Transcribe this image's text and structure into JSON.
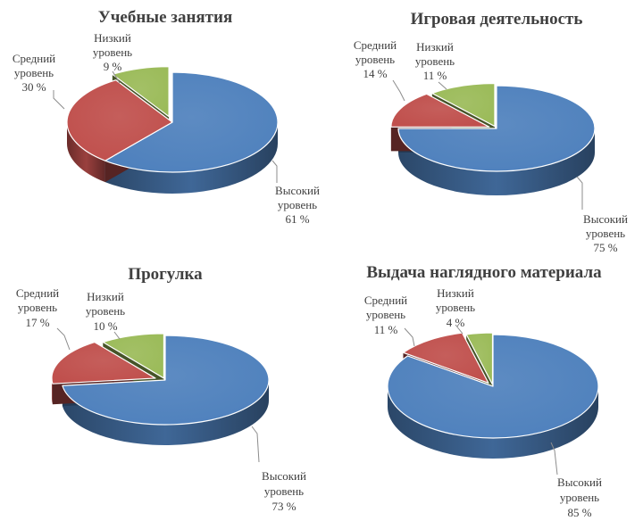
{
  "chart_data": [
    {
      "type": "pie",
      "title": "Учебные занятия",
      "slices": [
        {
          "label_line1": "Высокий",
          "label_line2": "уровень",
          "value_label": "61 %",
          "value": 61
        },
        {
          "label_line1": "Средний",
          "label_line2": "уровень",
          "value_label": "30 %",
          "value": 30
        },
        {
          "label_line1": "Низкий",
          "label_line2": "уровень",
          "value_label": "9 %",
          "value": 9
        }
      ]
    },
    {
      "type": "pie",
      "title": "Игровая деятельность",
      "slices": [
        {
          "label_line1": "Высокий",
          "label_line2": "уровень",
          "value_label": "75 %",
          "value": 75
        },
        {
          "label_line1": "Средний",
          "label_line2": "уровень",
          "value_label": "14 %",
          "value": 14
        },
        {
          "label_line1": "Низкий",
          "label_line2": "уровень",
          "value_label": "11 %",
          "value": 11
        }
      ]
    },
    {
      "type": "pie",
      "title": "Прогулка",
      "slices": [
        {
          "label_line1": "Высокий",
          "label_line2": "уровень",
          "value_label": "73 %",
          "value": 73
        },
        {
          "label_line1": "Средний",
          "label_line2": "уровень",
          "value_label": "17 %",
          "value": 17
        },
        {
          "label_line1": "Низкий",
          "label_line2": "уровень",
          "value_label": "10 %",
          "value": 10
        }
      ]
    },
    {
      "type": "pie",
      "title": "Выдача наглядного материала",
      "slices": [
        {
          "label_line1": "Высокий",
          "label_line2": "уровень",
          "value_label": "85 %",
          "value": 85
        },
        {
          "label_line1": "Средний",
          "label_line2": "уровень",
          "value_label": "11 %",
          "value": 11
        },
        {
          "label_line1": "Низкий",
          "label_line2": "уровень",
          "value_label": "4 %",
          "value": 4
        }
      ]
    }
  ],
  "colors": {
    "high": "#4F81BD",
    "medium": "#C0504D",
    "low": "#9BBB59",
    "text": "#404040"
  }
}
